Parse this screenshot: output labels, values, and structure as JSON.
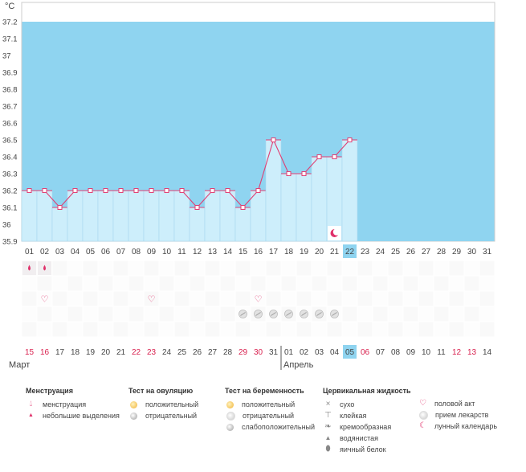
{
  "chart_data": {
    "type": "bar",
    "title": "",
    "ylabel": "°C",
    "ylim": [
      35.9,
      37.2
    ],
    "yticks": [
      "37.2",
      "37.1",
      "37",
      "36.9",
      "36.8",
      "36.7",
      "36.6",
      "36.5",
      "36.4",
      "36.3",
      "36.2",
      "36.1",
      "36",
      "35.9"
    ],
    "categories": [
      "01",
      "02",
      "03",
      "04",
      "05",
      "06",
      "07",
      "08",
      "09",
      "10",
      "11",
      "12",
      "13",
      "14",
      "15",
      "16",
      "17",
      "18",
      "19",
      "20",
      "21",
      "22",
      "23",
      "24",
      "25",
      "26",
      "27",
      "28",
      "29",
      "30",
      "31"
    ],
    "values": [
      36.2,
      36.2,
      36.1,
      36.2,
      36.2,
      36.2,
      36.2,
      36.2,
      36.2,
      36.2,
      36.2,
      36.1,
      36.2,
      36.2,
      36.1,
      36.2,
      36.5,
      36.3,
      36.3,
      36.4,
      36.4,
      36.5,
      null,
      null,
      null,
      null,
      null,
      null,
      null,
      null,
      null
    ],
    "highlight_cycle_day": "22",
    "calendar_days": [
      "15",
      "16",
      "17",
      "18",
      "19",
      "20",
      "21",
      "22",
      "23",
      "24",
      "25",
      "26",
      "27",
      "28",
      "29",
      "30",
      "31",
      "01",
      "02",
      "03",
      "04",
      "05",
      "06",
      "07",
      "08",
      "09",
      "10",
      "11",
      "12",
      "13",
      "14"
    ],
    "red_calendar_days": [
      0,
      1,
      7,
      8,
      14,
      15,
      22,
      28,
      29
    ],
    "highlight_calendar_index": 21,
    "month_labels": [
      "Март",
      "Апрель"
    ],
    "markers": {
      "menstruation_small": [
        1,
        2
      ],
      "intercourse": [
        2,
        9,
        16
      ],
      "medication": [
        15,
        16,
        17,
        18,
        19,
        20,
        21
      ],
      "lunar_calendar": [
        21
      ]
    },
    "colors": {
      "sky": "#8fd4f0",
      "bar_fill": "#cdeefb",
      "bar_border": "#a7d8ee",
      "line": "#e03f73",
      "highlight": "#8fd4f0",
      "red_text": "#d9214f"
    }
  },
  "legend": {
    "menstruation": {
      "title": "Менструация",
      "items": [
        "менструация",
        "небольшие выделения"
      ]
    },
    "ovulation_test": {
      "title": "Тест на овуляцию",
      "items": [
        "положительный",
        "отрицательный"
      ]
    },
    "pregnancy_test": {
      "title": "Тест на беременность",
      "items": [
        "положительный",
        "отрицательный",
        "слабоположительный"
      ]
    },
    "cervical_fluid": {
      "title": "Цервикальная жидкость",
      "items": [
        "сухо",
        "клейкая",
        "кремообразная",
        "водянистая",
        "яичный белок"
      ]
    },
    "other": {
      "items": [
        "половой акт",
        "прием лекарств",
        "лунный календарь"
      ]
    }
  }
}
